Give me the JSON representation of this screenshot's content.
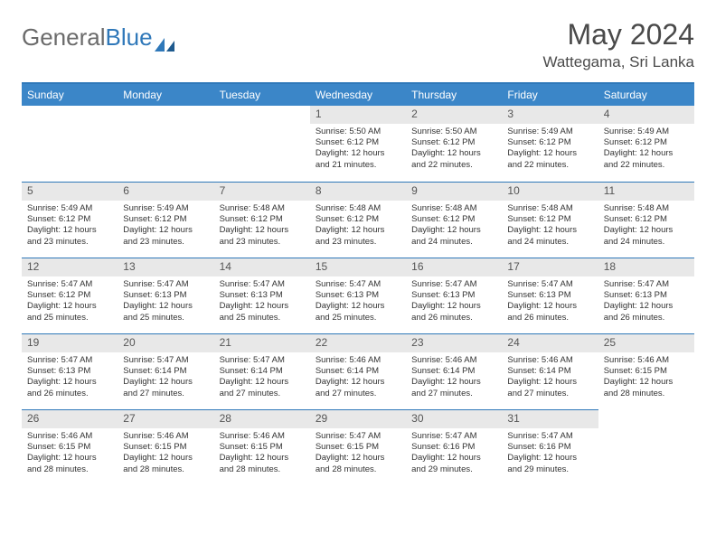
{
  "logo": {
    "text1": "General",
    "text2": "Blue"
  },
  "title": "May 2024",
  "location": "Wattegama, Sri Lanka",
  "colors": {
    "header_bg": "#3b86c8",
    "border": "#2f78b9",
    "daynum_bg": "#e8e8e8",
    "text": "#333333",
    "title": "#4a4a4a"
  },
  "weekdays": [
    "Sunday",
    "Monday",
    "Tuesday",
    "Wednesday",
    "Thursday",
    "Friday",
    "Saturday"
  ],
  "blanks_before": 3,
  "days": [
    {
      "n": "1",
      "sr": "5:50 AM",
      "ss": "6:12 PM",
      "dl": "12 hours and 21 minutes."
    },
    {
      "n": "2",
      "sr": "5:50 AM",
      "ss": "6:12 PM",
      "dl": "12 hours and 22 minutes."
    },
    {
      "n": "3",
      "sr": "5:49 AM",
      "ss": "6:12 PM",
      "dl": "12 hours and 22 minutes."
    },
    {
      "n": "4",
      "sr": "5:49 AM",
      "ss": "6:12 PM",
      "dl": "12 hours and 22 minutes."
    },
    {
      "n": "5",
      "sr": "5:49 AM",
      "ss": "6:12 PM",
      "dl": "12 hours and 23 minutes."
    },
    {
      "n": "6",
      "sr": "5:49 AM",
      "ss": "6:12 PM",
      "dl": "12 hours and 23 minutes."
    },
    {
      "n": "7",
      "sr": "5:48 AM",
      "ss": "6:12 PM",
      "dl": "12 hours and 23 minutes."
    },
    {
      "n": "8",
      "sr": "5:48 AM",
      "ss": "6:12 PM",
      "dl": "12 hours and 23 minutes."
    },
    {
      "n": "9",
      "sr": "5:48 AM",
      "ss": "6:12 PM",
      "dl": "12 hours and 24 minutes."
    },
    {
      "n": "10",
      "sr": "5:48 AM",
      "ss": "6:12 PM",
      "dl": "12 hours and 24 minutes."
    },
    {
      "n": "11",
      "sr": "5:48 AM",
      "ss": "6:12 PM",
      "dl": "12 hours and 24 minutes."
    },
    {
      "n": "12",
      "sr": "5:47 AM",
      "ss": "6:12 PM",
      "dl": "12 hours and 25 minutes."
    },
    {
      "n": "13",
      "sr": "5:47 AM",
      "ss": "6:13 PM",
      "dl": "12 hours and 25 minutes."
    },
    {
      "n": "14",
      "sr": "5:47 AM",
      "ss": "6:13 PM",
      "dl": "12 hours and 25 minutes."
    },
    {
      "n": "15",
      "sr": "5:47 AM",
      "ss": "6:13 PM",
      "dl": "12 hours and 25 minutes."
    },
    {
      "n": "16",
      "sr": "5:47 AM",
      "ss": "6:13 PM",
      "dl": "12 hours and 26 minutes."
    },
    {
      "n": "17",
      "sr": "5:47 AM",
      "ss": "6:13 PM",
      "dl": "12 hours and 26 minutes."
    },
    {
      "n": "18",
      "sr": "5:47 AM",
      "ss": "6:13 PM",
      "dl": "12 hours and 26 minutes."
    },
    {
      "n": "19",
      "sr": "5:47 AM",
      "ss": "6:13 PM",
      "dl": "12 hours and 26 minutes."
    },
    {
      "n": "20",
      "sr": "5:47 AM",
      "ss": "6:14 PM",
      "dl": "12 hours and 27 minutes."
    },
    {
      "n": "21",
      "sr": "5:47 AM",
      "ss": "6:14 PM",
      "dl": "12 hours and 27 minutes."
    },
    {
      "n": "22",
      "sr": "5:46 AM",
      "ss": "6:14 PM",
      "dl": "12 hours and 27 minutes."
    },
    {
      "n": "23",
      "sr": "5:46 AM",
      "ss": "6:14 PM",
      "dl": "12 hours and 27 minutes."
    },
    {
      "n": "24",
      "sr": "5:46 AM",
      "ss": "6:14 PM",
      "dl": "12 hours and 27 minutes."
    },
    {
      "n": "25",
      "sr": "5:46 AM",
      "ss": "6:15 PM",
      "dl": "12 hours and 28 minutes."
    },
    {
      "n": "26",
      "sr": "5:46 AM",
      "ss": "6:15 PM",
      "dl": "12 hours and 28 minutes."
    },
    {
      "n": "27",
      "sr": "5:46 AM",
      "ss": "6:15 PM",
      "dl": "12 hours and 28 minutes."
    },
    {
      "n": "28",
      "sr": "5:46 AM",
      "ss": "6:15 PM",
      "dl": "12 hours and 28 minutes."
    },
    {
      "n": "29",
      "sr": "5:47 AM",
      "ss": "6:15 PM",
      "dl": "12 hours and 28 minutes."
    },
    {
      "n": "30",
      "sr": "5:47 AM",
      "ss": "6:16 PM",
      "dl": "12 hours and 29 minutes."
    },
    {
      "n": "31",
      "sr": "5:47 AM",
      "ss": "6:16 PM",
      "dl": "12 hours and 29 minutes."
    }
  ],
  "labels": {
    "sunrise": "Sunrise:",
    "sunset": "Sunset:",
    "daylight": "Daylight:"
  }
}
